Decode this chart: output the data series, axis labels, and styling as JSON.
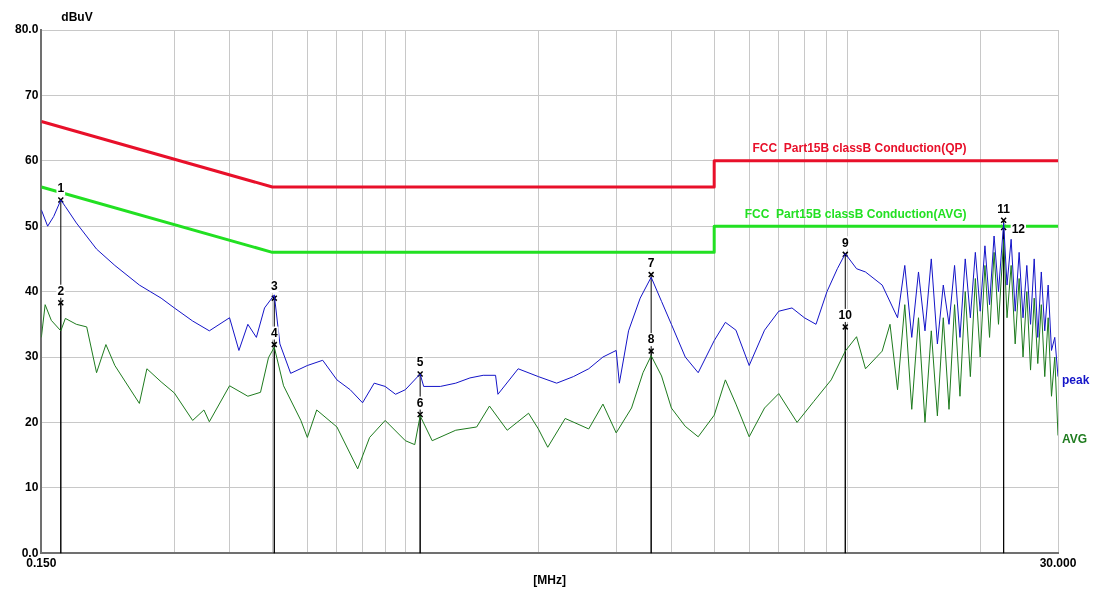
{
  "chart_data": {
    "type": "line",
    "xlabel": "[MHz]",
    "ylabel": "dBuV",
    "log": "x",
    "grid": true,
    "legend": false,
    "xlim": [
      0.15,
      30
    ],
    "xticks": [
      {
        "value": 0.15,
        "label": "0.150"
      },
      {
        "value": 0.3,
        "label": null
      },
      {
        "value": 0.4,
        "label": null
      },
      {
        "value": 0.5,
        "label": null
      },
      {
        "value": 0.6,
        "label": null
      },
      {
        "value": 0.7,
        "label": null
      },
      {
        "value": 0.8,
        "label": null
      },
      {
        "value": 0.9,
        "label": null
      },
      {
        "value": 1,
        "label": null
      },
      {
        "value": 2,
        "label": null
      },
      {
        "value": 3,
        "label": null
      },
      {
        "value": 4,
        "label": null
      },
      {
        "value": 5,
        "label": null
      },
      {
        "value": 6,
        "label": null
      },
      {
        "value": 7,
        "label": null
      },
      {
        "value": 8,
        "label": null
      },
      {
        "value": 9,
        "label": null
      },
      {
        "value": 10,
        "label": null
      },
      {
        "value": 20,
        "label": null
      },
      {
        "value": 30,
        "label": "30.000"
      }
    ],
    "ylim": [
      0,
      80
    ],
    "yticks": [
      {
        "value": 0,
        "label": "0.0"
      },
      10,
      20,
      30,
      40,
      50,
      60,
      70,
      {
        "value": 80,
        "label": "80.0"
      }
    ],
    "series": [
      {
        "name": "peak",
        "color": "#1414c8",
        "x": [
          0.15,
          0.155,
          0.16,
          0.166,
          0.17,
          0.18,
          0.2,
          0.22,
          0.25,
          0.28,
          0.3,
          0.33,
          0.36,
          0.4,
          0.42,
          0.44,
          0.46,
          0.48,
          0.505,
          0.52,
          0.55,
          0.6,
          0.65,
          0.7,
          0.75,
          0.8,
          0.85,
          0.9,
          0.95,
          1.0,
          1.08,
          1.1,
          1.2,
          1.3,
          1.4,
          1.5,
          1.6,
          1.62,
          1.8,
          2.0,
          2.2,
          2.4,
          2.6,
          2.8,
          3.0,
          3.05,
          3.2,
          3.4,
          3.6,
          3.8,
          4.0,
          4.3,
          4.6,
          5.0,
          5.3,
          5.6,
          6.0,
          6.5,
          7.0,
          7.5,
          8.0,
          8.5,
          9.0,
          9.5,
          9.9,
          10.5,
          11,
          12,
          13,
          13.5,
          14,
          14.5,
          15,
          15.5,
          16,
          16.5,
          17,
          17.5,
          18,
          18.5,
          19,
          19.5,
          20,
          20.5,
          21,
          21.5,
          22,
          22.6,
          23,
          23.5,
          24,
          24.5,
          25,
          25.5,
          26,
          26.5,
          27,
          27.5,
          28,
          28.5,
          29,
          29.5,
          30
        ],
        "values": [
          52.5,
          50,
          51.5,
          54,
          53,
          50.5,
          46.5,
          44,
          41,
          39,
          37.5,
          35.5,
          34,
          36,
          31,
          35,
          33,
          37.5,
          39.5,
          32,
          27.5,
          28.7,
          29.5,
          26.5,
          25,
          23,
          26,
          25.5,
          24.3,
          25,
          27.4,
          25.5,
          25.5,
          26,
          26.8,
          27.2,
          27.2,
          24.3,
          28.2,
          27,
          26,
          27,
          28.2,
          30,
          31,
          26,
          34,
          39,
          42.2,
          38.5,
          35,
          30,
          27.6,
          32.5,
          35.3,
          34.1,
          28.7,
          34.1,
          37,
          37.5,
          36,
          35,
          40,
          43.5,
          45.8,
          43.5,
          43,
          41,
          36,
          44,
          33,
          43,
          34,
          45,
          32,
          41,
          35,
          44,
          33,
          45,
          36,
          46,
          37,
          47,
          38,
          48.5,
          40,
          50.5,
          41,
          48,
          37,
          46,
          36,
          44,
          35,
          45,
          33,
          43,
          34,
          41,
          31,
          33,
          27
        ]
      },
      {
        "name": "AVG",
        "color": "#1e7b1e",
        "x": [
          0.15,
          0.153,
          0.158,
          0.166,
          0.17,
          0.18,
          0.19,
          0.2,
          0.21,
          0.22,
          0.25,
          0.26,
          0.28,
          0.3,
          0.33,
          0.35,
          0.36,
          0.4,
          0.44,
          0.47,
          0.49,
          0.505,
          0.53,
          0.58,
          0.6,
          0.63,
          0.7,
          0.78,
          0.83,
          0.9,
          1.0,
          1.05,
          1.08,
          1.15,
          1.3,
          1.45,
          1.55,
          1.7,
          1.9,
          2.0,
          2.1,
          2.3,
          2.6,
          2.8,
          3.0,
          3.25,
          3.45,
          3.6,
          3.8,
          4.0,
          4.3,
          4.6,
          5.0,
          5.3,
          5.6,
          6.0,
          6.5,
          7.0,
          7.7,
          8.4,
          9.2,
          9.9,
          10.5,
          11,
          12,
          12.5,
          13,
          13.5,
          14,
          14.5,
          15,
          15.5,
          16,
          16.5,
          17,
          17.5,
          18,
          18.5,
          19,
          19.5,
          20,
          20.5,
          21,
          21.5,
          22,
          22.6,
          23,
          23.5,
          24,
          24.5,
          25,
          25.5,
          26,
          26.5,
          27,
          27.5,
          28,
          28.5,
          29,
          29.5,
          30
        ],
        "values": [
          33,
          38,
          35.6,
          34,
          35.9,
          35,
          34.6,
          27.6,
          31.9,
          28.7,
          22.9,
          28.2,
          26.2,
          24.5,
          20.3,
          21.9,
          20.1,
          25.6,
          24,
          24.6,
          29.9,
          31.5,
          25.6,
          20.3,
          17.7,
          21.9,
          19.3,
          12.9,
          17.7,
          20.3,
          17.2,
          16.6,
          21,
          17.2,
          18.8,
          19.3,
          22.5,
          18.8,
          21.4,
          19,
          16.2,
          20.6,
          19,
          22.8,
          18.4,
          22.2,
          27.6,
          30.2,
          27.1,
          22.2,
          19.4,
          17.8,
          21.1,
          26.5,
          22.8,
          17.8,
          22.2,
          24.4,
          20,
          23.2,
          26.5,
          30.9,
          33.1,
          28.2,
          30.9,
          35,
          25,
          38,
          22,
          36,
          20,
          34,
          21,
          36,
          22,
          38,
          24,
          40,
          27,
          42,
          30,
          44,
          33,
          46,
          35,
          48,
          36,
          44,
          32,
          42,
          30,
          40,
          28,
          39,
          29,
          38,
          27,
          36,
          24,
          30,
          18
        ]
      },
      {
        "name": "FCC  Part15B classB Conduction(QP)",
        "color": "#e8102a",
        "x": [
          0.15,
          0.5,
          5,
          5,
          30
        ],
        "values": [
          66,
          56,
          56,
          60,
          60
        ]
      },
      {
        "name": "FCC  Part15B classB Conduction(AVG)",
        "color": "#22e022",
        "x": [
          0.15,
          0.5,
          5,
          5,
          30
        ],
        "values": [
          56,
          46,
          46,
          50,
          50
        ]
      },
      {
        "type": "lollipop",
        "color": "#000000",
        "marker": "cross",
        "x": [
          0.166,
          0.166,
          0.505,
          0.505,
          1.08,
          1.08,
          3.6,
          3.6,
          9.9,
          9.9,
          22.6,
          22.6
        ],
        "values": [
          54,
          38.3,
          39,
          31.9,
          27.4,
          21.2,
          42.6,
          30.9,
          45.7,
          34.6,
          50.9,
          49.8
        ]
      }
    ],
    "annotations": [
      {
        "text": "1",
        "x": 0.166,
        "y": 54
      },
      {
        "text": "2",
        "x": 0.166,
        "y": 38.3
      },
      {
        "text": "3",
        "x": 0.505,
        "y": 39
      },
      {
        "text": "4",
        "x": 0.505,
        "y": 31.9
      },
      {
        "text": "5",
        "x": 1.08,
        "y": 27.4
      },
      {
        "text": "6",
        "x": 1.08,
        "y": 21.2
      },
      {
        "text": "7",
        "x": 3.6,
        "y": 42.6
      },
      {
        "text": "8",
        "x": 3.6,
        "y": 30.9
      },
      {
        "text": "9",
        "x": 9.9,
        "y": 45.7
      },
      {
        "text": "10",
        "x": 9.9,
        "y": 34.6
      },
      {
        "text": "11",
        "x": 22.6,
        "y": 50.9
      },
      {
        "text": "12",
        "x": 22.6,
        "y": 49.8
      }
    ]
  }
}
